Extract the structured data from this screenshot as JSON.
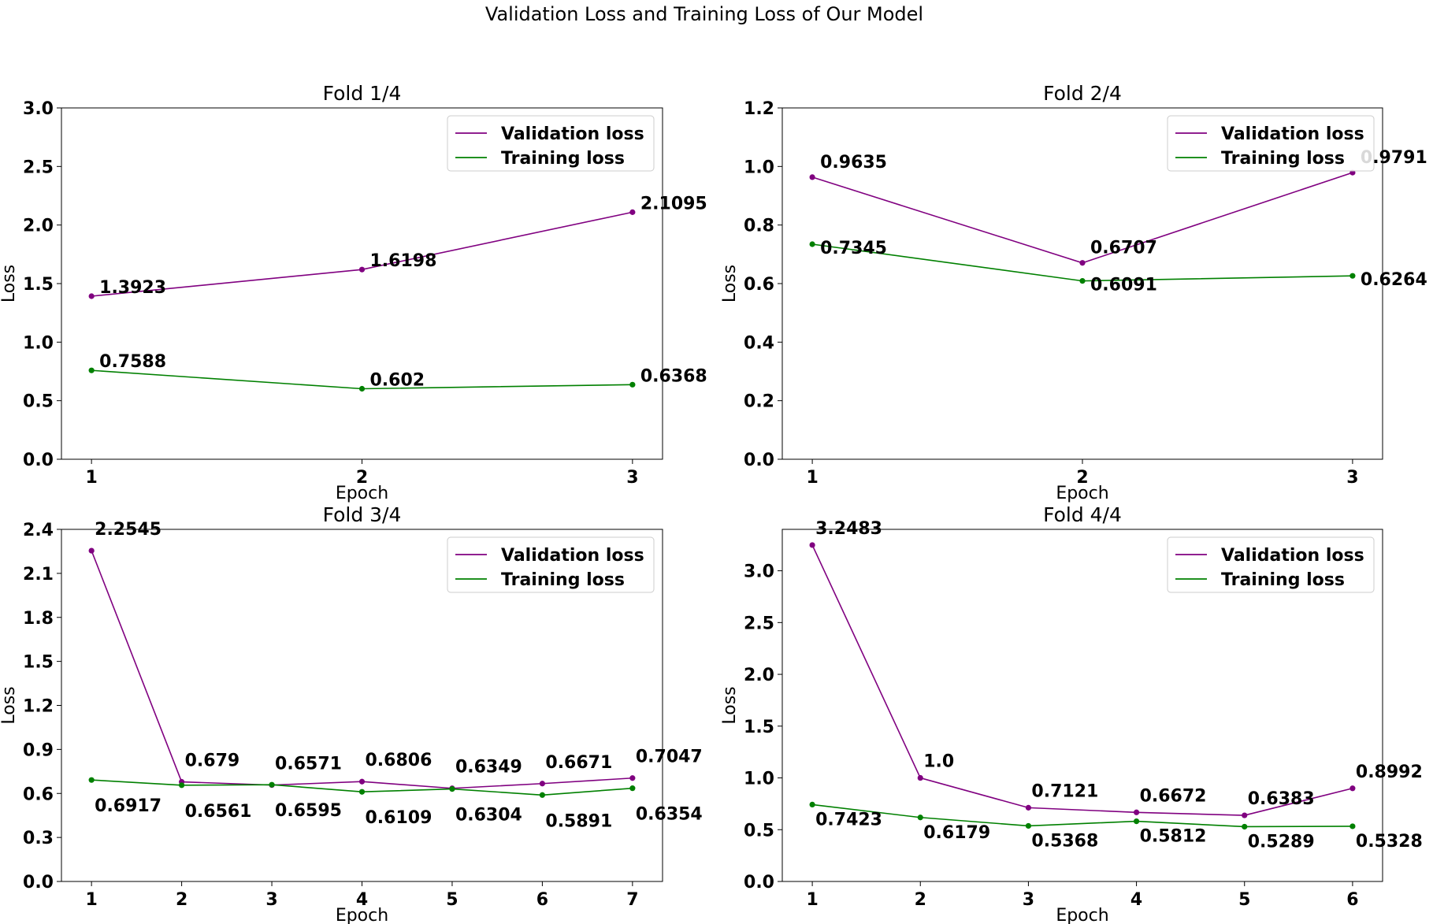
{
  "figure_title": "Validation Loss and Training Loss of Our Model",
  "colors": {
    "validation": "#800080",
    "training": "#008000"
  },
  "chart_data": [
    {
      "type": "line",
      "title": "Fold 1/4",
      "xlabel": "Epoch",
      "ylabel": "Loss",
      "x": [
        1,
        2,
        3
      ],
      "ylim": [
        0,
        3.0
      ],
      "yticks": [
        "0.0",
        "0.5",
        "1.0",
        "1.5",
        "2.0",
        "2.5",
        "3.0"
      ],
      "legend_position": "top-right",
      "series": [
        {
          "name": "Validation loss",
          "values": [
            1.3923,
            1.6198,
            2.1095
          ],
          "labels": [
            "1.3923",
            "1.6198",
            "2.1095"
          ]
        },
        {
          "name": "Training loss",
          "values": [
            0.7588,
            0.602,
            0.6368
          ],
          "labels": [
            "0.7588",
            "0.602",
            "0.6368"
          ]
        }
      ]
    },
    {
      "type": "line",
      "title": "Fold 2/4",
      "xlabel": "Epoch",
      "ylabel": "Loss",
      "x": [
        1,
        2,
        3
      ],
      "ylim": [
        0,
        1.2
      ],
      "yticks": [
        "0.0",
        "0.2",
        "0.4",
        "0.6",
        "0.8",
        "1.0",
        "1.2"
      ],
      "legend_position": "top-right",
      "series": [
        {
          "name": "Validation loss",
          "values": [
            0.9635,
            0.6707,
            0.9791
          ],
          "labels": [
            "0.9635",
            "0.6707",
            "0.9791"
          ]
        },
        {
          "name": "Training loss",
          "values": [
            0.7345,
            0.6091,
            0.6264
          ],
          "labels": [
            "0.7345",
            "0.6091",
            "0.6264"
          ]
        }
      ]
    },
    {
      "type": "line",
      "title": "Fold 3/4",
      "xlabel": "Epoch",
      "ylabel": "Loss",
      "x": [
        1,
        2,
        3,
        4,
        5,
        6,
        7
      ],
      "ylim": [
        0,
        2.4
      ],
      "yticks": [
        "0.0",
        "0.3",
        "0.6",
        "0.9",
        "1.2",
        "1.5",
        "1.8",
        "2.1",
        "2.4"
      ],
      "legend_position": "top-right",
      "series": [
        {
          "name": "Validation loss",
          "values": [
            2.2545,
            0.679,
            0.6571,
            0.6806,
            0.6349,
            0.6671,
            0.7047
          ],
          "labels": [
            "2.2545",
            "0.679",
            "0.6571",
            "0.6806",
            "0.6349",
            "0.6671",
            "0.7047"
          ]
        },
        {
          "name": "Training loss",
          "values": [
            0.6917,
            0.6561,
            0.6595,
            0.6109,
            0.6304,
            0.5891,
            0.6354
          ],
          "labels": [
            "0.6917",
            "0.6561",
            "0.6595",
            "0.6109",
            "0.6304",
            "0.5891",
            "0.6354"
          ]
        }
      ]
    },
    {
      "type": "line",
      "title": "Fold 4/4",
      "xlabel": "Epoch",
      "ylabel": "Loss",
      "x": [
        1,
        2,
        3,
        4,
        5,
        6
      ],
      "ylim": [
        0,
        3.4
      ],
      "yticks": [
        "0.0",
        "0.5",
        "1.0",
        "1.5",
        "2.0",
        "2.5",
        "3.0"
      ],
      "legend_position": "top-right",
      "series": [
        {
          "name": "Validation loss",
          "values": [
            3.2483,
            1.0,
            0.7121,
            0.6672,
            0.6383,
            0.8992
          ],
          "labels": [
            "3.2483",
            "1.0",
            "0.7121",
            "0.6672",
            "0.6383",
            "0.8992"
          ]
        },
        {
          "name": "Training loss",
          "values": [
            0.7423,
            0.6179,
            0.5368,
            0.5812,
            0.5289,
            0.5328
          ],
          "labels": [
            "0.7423",
            "0.6179",
            "0.5368",
            "0.5812",
            "0.5289",
            "0.5328"
          ]
        }
      ]
    }
  ]
}
